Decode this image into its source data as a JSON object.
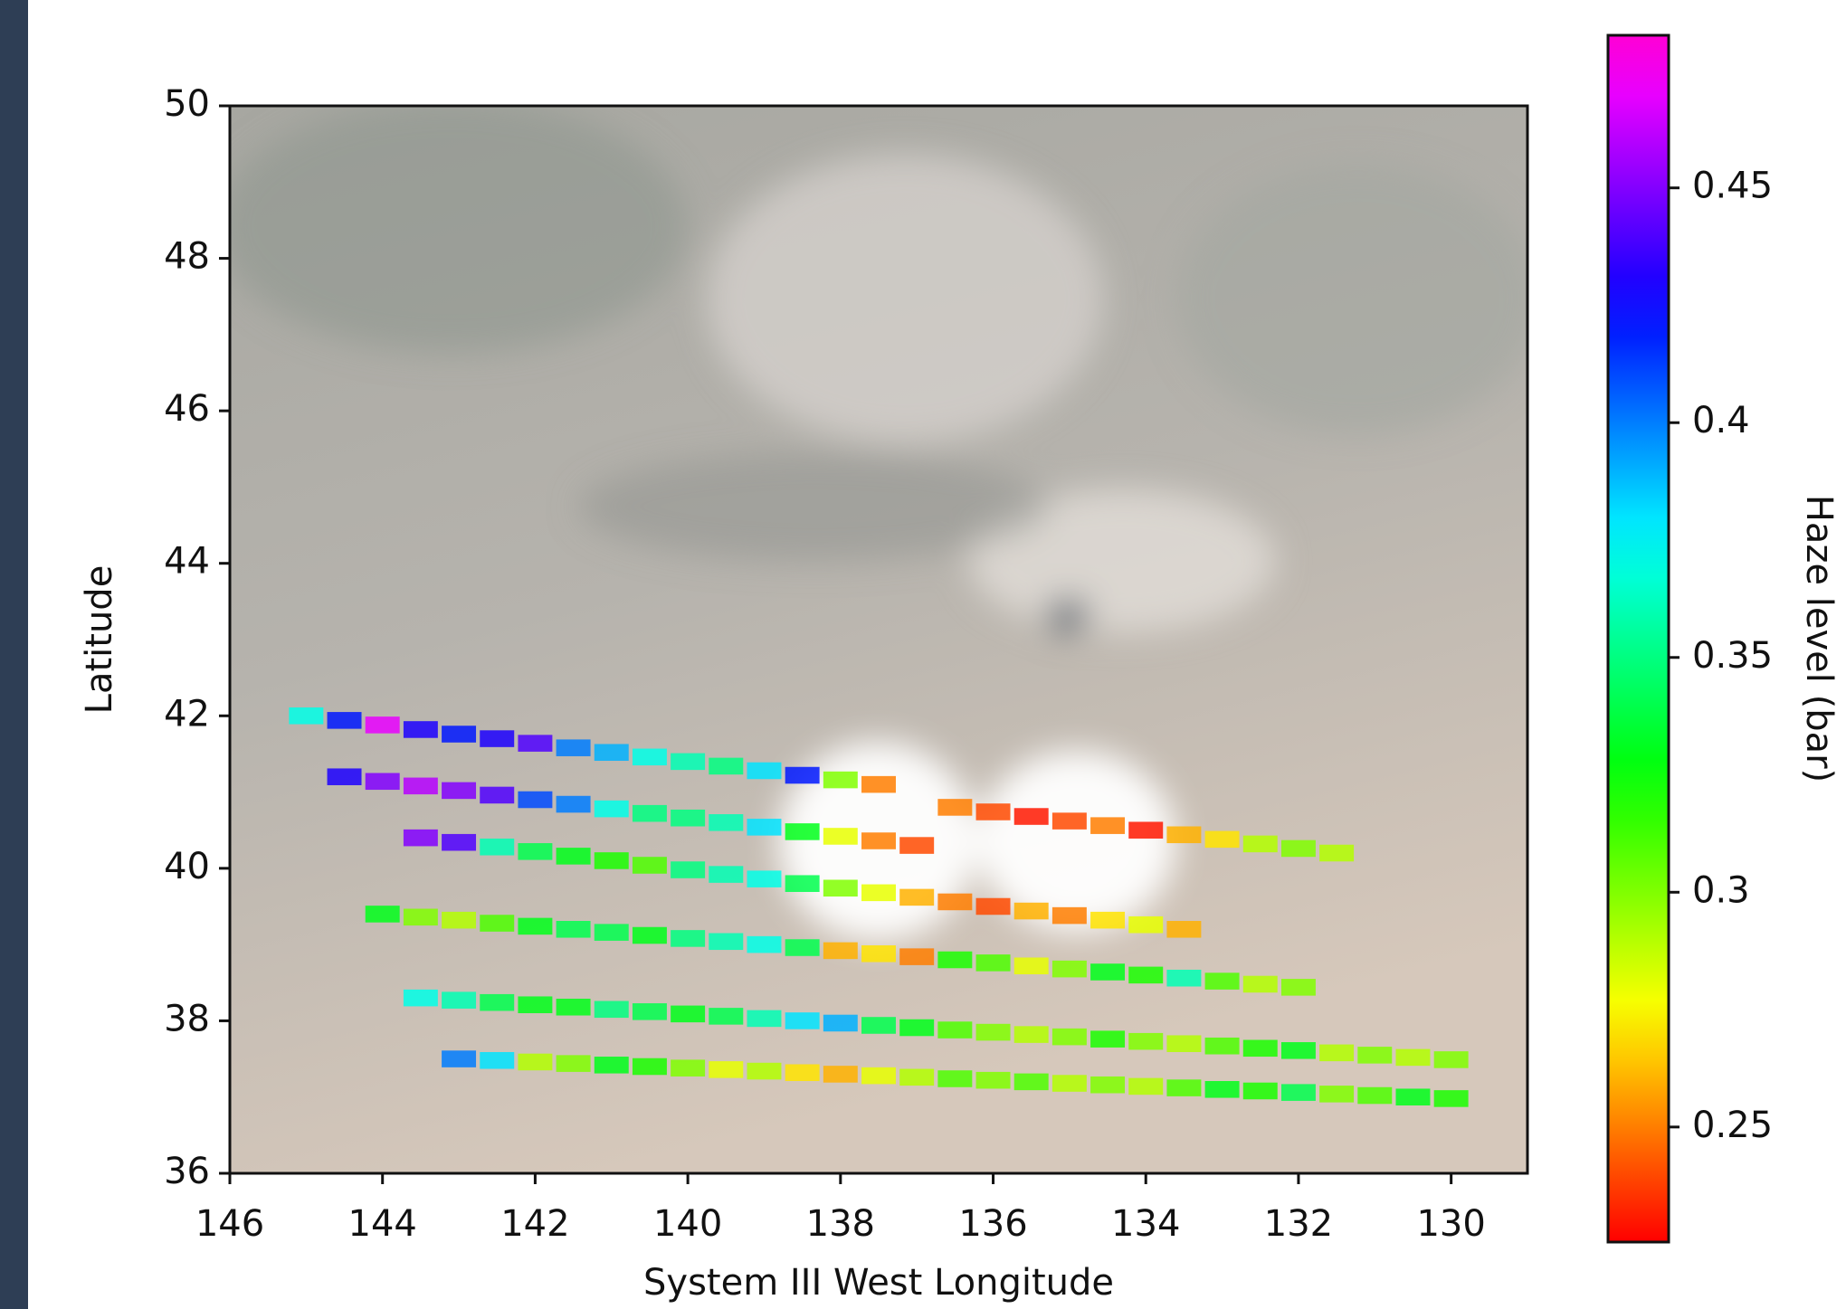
{
  "chart_data": {
    "type": "scatter",
    "xlabel": "System III West Longitude",
    "ylabel": "Latitude",
    "xlim": [
      146,
      129
    ],
    "ylim": [
      36,
      50
    ],
    "xticks": [
      146,
      144,
      142,
      140,
      138,
      136,
      134,
      132,
      130
    ],
    "yticks": [
      36,
      38,
      40,
      42,
      44,
      46,
      48,
      50
    ],
    "colormap": "gist_rainbow",
    "colorbar": {
      "label": "Haze level (bar)",
      "lim": [
        0.2255,
        0.4825
      ],
      "ticks": [
        0.25,
        0.3,
        0.35,
        0.4,
        0.45
      ]
    },
    "series": [
      {
        "x": [
          145,
          144.5,
          144,
          143.5,
          143,
          142.5,
          142,
          141.5,
          141,
          140.5,
          140,
          139.5,
          139,
          138.5,
          138,
          137.5
        ],
        "y": [
          42,
          41.94,
          41.88,
          41.82,
          41.76,
          41.7,
          41.64,
          41.58,
          41.52,
          41.46,
          41.4,
          41.34,
          41.28,
          41.22,
          41.16,
          41.1
        ],
        "values": [
          0.37,
          0.42,
          0.47,
          0.43,
          0.42,
          0.43,
          0.44,
          0.4,
          0.39,
          0.37,
          0.36,
          0.35,
          0.38,
          0.42,
          0.3,
          0.25
        ]
      },
      {
        "x": [
          144.5,
          144,
          143.5,
          143,
          142.5,
          142,
          141.5,
          141,
          140.5,
          140,
          139.5,
          139,
          138.5,
          138,
          137.5,
          137
        ],
        "y": [
          41.2,
          41.14,
          41.08,
          41.02,
          40.96,
          40.9,
          40.84,
          40.78,
          40.72,
          40.66,
          40.6,
          40.54,
          40.48,
          40.42,
          40.36,
          40.3
        ],
        "values": [
          0.43,
          0.45,
          0.46,
          0.45,
          0.44,
          0.41,
          0.4,
          0.37,
          0.35,
          0.35,
          0.36,
          0.38,
          0.33,
          0.28,
          0.25,
          0.24
        ]
      },
      {
        "x": [
          143.5,
          143,
          142.5,
          142,
          141.5,
          141,
          140.5,
          140,
          139.5,
          139,
          138.5,
          138,
          137.5,
          137,
          136.5,
          136,
          135.5,
          135,
          134.5,
          134,
          133.5
        ],
        "y": [
          40.4,
          40.34,
          40.28,
          40.22,
          40.16,
          40.1,
          40.04,
          39.98,
          39.92,
          39.86,
          39.8,
          39.74,
          39.68,
          39.62,
          39.56,
          39.5,
          39.44,
          39.38,
          39.32,
          39.26,
          39.2
        ],
        "values": [
          0.45,
          0.44,
          0.36,
          0.34,
          0.33,
          0.32,
          0.31,
          0.35,
          0.36,
          0.37,
          0.34,
          0.3,
          0.28,
          0.26,
          0.25,
          0.24,
          0.26,
          0.25,
          0.27,
          0.28,
          0.26
        ]
      },
      {
        "x": [
          136.5,
          136,
          135.5,
          135,
          134.5,
          134,
          133.5,
          133,
          132.5,
          132,
          131.5
        ],
        "y": [
          40.8,
          40.74,
          40.68,
          40.62,
          40.56,
          40.5,
          40.44,
          40.38,
          40.32,
          40.26,
          40.2
        ],
        "values": [
          0.25,
          0.24,
          0.23,
          0.24,
          0.25,
          0.23,
          0.26,
          0.27,
          0.29,
          0.3,
          0.29
        ]
      },
      {
        "x": [
          144,
          143.5,
          143,
          142.5,
          142,
          141.5,
          141,
          140.5,
          140,
          139.5,
          139,
          138.5,
          138,
          137.5,
          137,
          136.5,
          136,
          135.5,
          135,
          134.5,
          134,
          133.5,
          133,
          132.5,
          132
        ],
        "y": [
          39.4,
          39.36,
          39.32,
          39.28,
          39.24,
          39.2,
          39.16,
          39.12,
          39.08,
          39.04,
          39,
          38.96,
          38.92,
          38.88,
          38.84,
          38.8,
          38.76,
          38.72,
          38.68,
          38.64,
          38.6,
          38.56,
          38.52,
          38.48,
          38.44
        ],
        "values": [
          0.33,
          0.3,
          0.29,
          0.31,
          0.33,
          0.34,
          0.34,
          0.33,
          0.35,
          0.36,
          0.37,
          0.34,
          0.26,
          0.27,
          0.25,
          0.32,
          0.31,
          0.28,
          0.3,
          0.33,
          0.32,
          0.36,
          0.31,
          0.29,
          0.3
        ]
      },
      {
        "x": [
          143.5,
          143,
          142.5,
          142,
          141.5,
          141,
          140.5,
          140,
          139.5,
          139,
          138.5,
          138,
          137.5,
          137,
          136.5,
          136,
          135.5,
          135,
          134.5,
          134,
          133.5,
          133,
          132.5,
          132,
          131.5,
          131,
          130.5,
          130
        ],
        "y": [
          38.3,
          38.27,
          38.24,
          38.21,
          38.18,
          38.15,
          38.12,
          38.09,
          38.06,
          38.03,
          38,
          37.97,
          37.94,
          37.91,
          37.88,
          37.85,
          37.82,
          37.79,
          37.76,
          37.73,
          37.7,
          37.67,
          37.64,
          37.61,
          37.58,
          37.55,
          37.52,
          37.49
        ],
        "values": [
          0.37,
          0.36,
          0.34,
          0.33,
          0.33,
          0.35,
          0.34,
          0.33,
          0.34,
          0.36,
          0.38,
          0.39,
          0.34,
          0.33,
          0.31,
          0.3,
          0.29,
          0.3,
          0.32,
          0.3,
          0.29,
          0.31,
          0.32,
          0.33,
          0.29,
          0.3,
          0.29,
          0.3
        ]
      },
      {
        "x": [
          143,
          142.5,
          142,
          141.5,
          141,
          140.5,
          140,
          139.5,
          139,
          138.5,
          138,
          137.5,
          137,
          136.5,
          136,
          135.5,
          135,
          134.5,
          134,
          133.5,
          133,
          132.5,
          132,
          131.5,
          131,
          130.5,
          130
        ],
        "y": [
          37.5,
          37.48,
          37.46,
          37.44,
          37.42,
          37.4,
          37.38,
          37.36,
          37.34,
          37.32,
          37.3,
          37.28,
          37.26,
          37.24,
          37.22,
          37.2,
          37.18,
          37.16,
          37.14,
          37.12,
          37.1,
          37.08,
          37.06,
          37.04,
          37.02,
          37,
          36.98
        ],
        "values": [
          0.4,
          0.38,
          0.29,
          0.3,
          0.33,
          0.32,
          0.3,
          0.28,
          0.29,
          0.27,
          0.26,
          0.28,
          0.29,
          0.31,
          0.3,
          0.31,
          0.29,
          0.3,
          0.29,
          0.31,
          0.33,
          0.32,
          0.34,
          0.3,
          0.31,
          0.33,
          0.32
        ]
      }
    ]
  }
}
